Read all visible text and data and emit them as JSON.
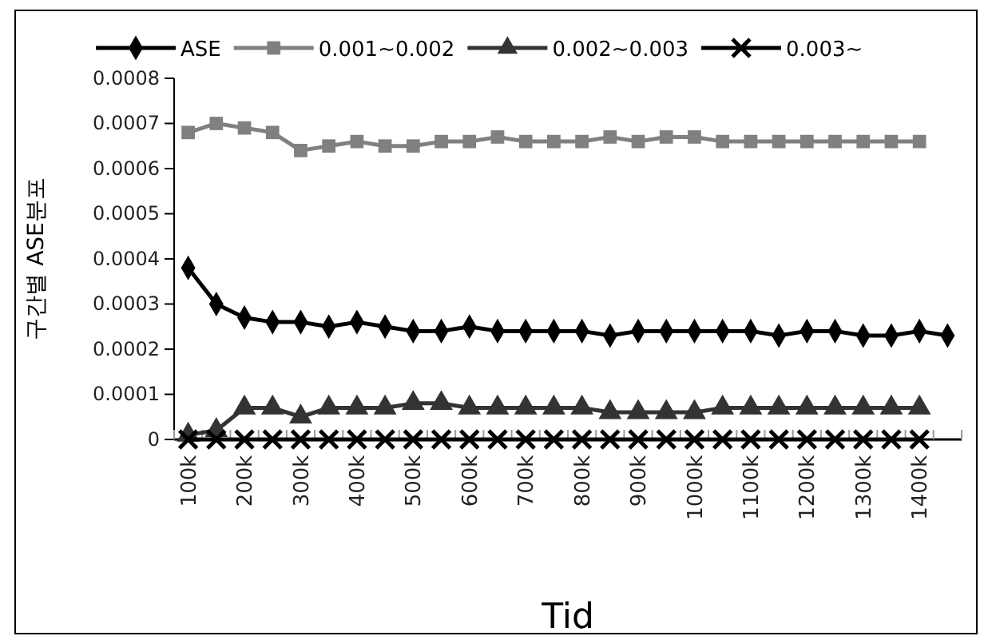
{
  "chart_data": {
    "type": "line",
    "xlabel": "Tid",
    "ylabel": "구간별 ASE분포",
    "categories": [
      "100k",
      null,
      "200k",
      null,
      "300k",
      null,
      "400k",
      null,
      "500k",
      null,
      "600k",
      null,
      "700k",
      null,
      "800k",
      null,
      "900k",
      null,
      "1000k",
      null,
      "1100k",
      null,
      "1200k",
      null,
      "1300k",
      null,
      "1400k",
      null
    ],
    "series": [
      {
        "name": "ASE",
        "color": "#000000",
        "marker": "diamond",
        "values": [
          0.00038,
          0.0003,
          0.00027,
          0.00026,
          0.00026,
          0.00025,
          0.00026,
          0.00025,
          0.00024,
          0.00024,
          0.00025,
          0.00024,
          0.00024,
          0.00024,
          0.00024,
          0.00023,
          0.00024,
          0.00024,
          0.00024,
          0.00024,
          0.00024,
          0.00023,
          0.00024,
          0.00024,
          0.00023,
          0.00023,
          0.00024,
          0.00023
        ]
      },
      {
        "name": "0.001~0.002",
        "color": "#808080",
        "marker": "square",
        "values": [
          0.00068,
          0.0007,
          0.00069,
          0.00068,
          0.00064,
          0.00065,
          0.00066,
          0.00065,
          0.00065,
          0.00066,
          0.00066,
          0.00067,
          0.00066,
          0.00066,
          0.00066,
          0.00067,
          0.00066,
          0.00067,
          0.00067,
          0.00066,
          0.00066,
          0.00066,
          0.00066,
          0.00066,
          0.00066,
          0.00066,
          0.00066,
          null
        ]
      },
      {
        "name": "0.002~0.003",
        "color": "#333333",
        "marker": "triangle",
        "values": [
          1e-05,
          2e-05,
          7e-05,
          7e-05,
          5e-05,
          7e-05,
          7e-05,
          7e-05,
          8e-05,
          8e-05,
          7e-05,
          7e-05,
          7e-05,
          7e-05,
          7e-05,
          6e-05,
          6e-05,
          6e-05,
          6e-05,
          7e-05,
          7e-05,
          7e-05,
          7e-05,
          7e-05,
          7e-05,
          7e-05,
          7e-05,
          null
        ]
      },
      {
        "name": "0.003~",
        "color": "#000000",
        "marker": "cross",
        "values": [
          0,
          0,
          0,
          0,
          0,
          0,
          0,
          0,
          0,
          0,
          0,
          0,
          0,
          0,
          0,
          0,
          0,
          0,
          0,
          0,
          0,
          0,
          0,
          0,
          0,
          0,
          0,
          null
        ]
      }
    ],
    "ylim": [
      0,
      0.0008
    ],
    "yticks": [
      0,
      0.0001,
      0.0002,
      0.0003,
      0.0004,
      0.0005,
      0.0006,
      0.0007,
      0.0008
    ],
    "grid": false,
    "legend": "top",
    "line_style": "solid"
  }
}
